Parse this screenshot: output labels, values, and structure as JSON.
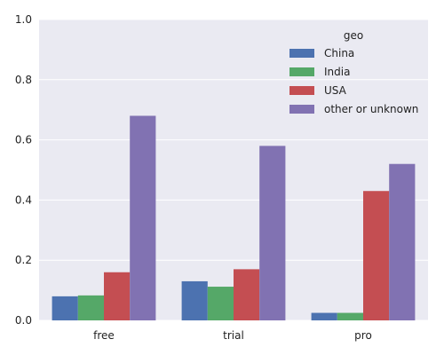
{
  "chart_data": {
    "type": "bar",
    "categories": [
      "free",
      "trial",
      "pro"
    ],
    "series": [
      {
        "name": "China",
        "values": [
          0.08,
          0.13,
          0.025
        ],
        "color": "#4c72b0"
      },
      {
        "name": "India",
        "values": [
          0.083,
          0.112,
          0.025
        ],
        "color": "#55a868"
      },
      {
        "name": "USA",
        "values": [
          0.16,
          0.17,
          0.43
        ],
        "color": "#c44e52"
      },
      {
        "name": "other or unknown",
        "values": [
          0.68,
          0.58,
          0.52
        ],
        "color": "#8172b2"
      }
    ],
    "legend_title": "geo",
    "legend_position": "top-right",
    "ylim": [
      0,
      1.0
    ],
    "yticks": [
      "0.0",
      "0.2",
      "0.4",
      "0.6",
      "0.8",
      "1.0"
    ],
    "grid": "horizontal",
    "background": "#eaeaf2"
  }
}
